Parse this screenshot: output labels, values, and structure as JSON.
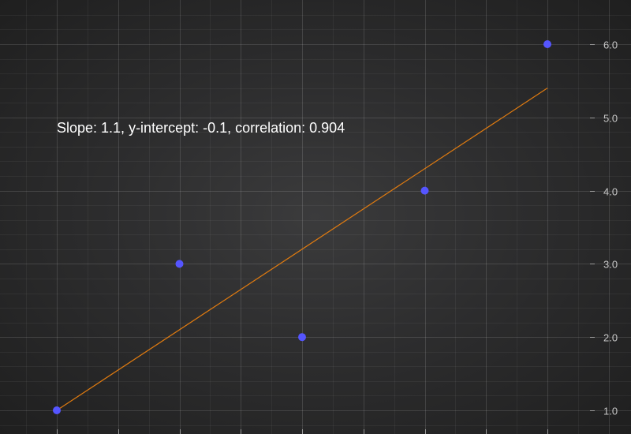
{
  "chart_data": {
    "type": "scatter",
    "title": "",
    "xlabel": "",
    "ylabel": "",
    "xlim": [
      0.5,
      5.9
    ],
    "ylim": [
      0.5,
      6.5
    ],
    "yticks": [
      1.0,
      2.0,
      3.0,
      4.0,
      5.0,
      6.0
    ],
    "ytick_labels": [
      "1.0",
      "2.0",
      "3.0",
      "4.0",
      "5.0",
      "6.0"
    ],
    "x_axis_labels_visible": false,
    "y_axis_position": "right",
    "grid": true,
    "series": [
      {
        "type": "scatter",
        "color": "#5555ff",
        "points": [
          {
            "x": 1,
            "y": 1
          },
          {
            "x": 2,
            "y": 3
          },
          {
            "x": 3,
            "y": 2
          },
          {
            "x": 4,
            "y": 4
          },
          {
            "x": 5,
            "y": 6
          }
        ]
      },
      {
        "type": "line",
        "color": "#e07b10",
        "points": [
          {
            "x": 1,
            "y": 1.0
          },
          {
            "x": 5,
            "y": 5.4
          }
        ]
      }
    ],
    "annotation": "Slope: 1.1, y-intercept: -0.1, correlation: 0.904",
    "colors": {
      "background": "#2d2d2e",
      "scatter": "#5555ff",
      "regression_line": "#e07b10",
      "annotation_text": "#ffffff",
      "tick_label": "#c8c8c8"
    }
  }
}
